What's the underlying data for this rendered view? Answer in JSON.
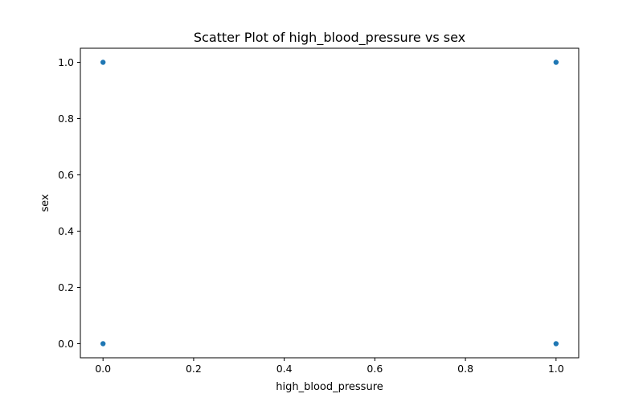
{
  "chart_data": {
    "type": "scatter",
    "title": "Scatter Plot of high_blood_pressure vs sex",
    "xlabel": "high_blood_pressure",
    "ylabel": "sex",
    "xlim": [
      -0.05,
      1.05
    ],
    "ylim": [
      -0.05,
      1.05
    ],
    "xticks": [
      0.0,
      0.2,
      0.4,
      0.6,
      0.8,
      1.0
    ],
    "yticks": [
      0.0,
      0.2,
      0.4,
      0.6,
      0.8,
      1.0
    ],
    "xtick_labels": [
      "0.0",
      "0.2",
      "0.4",
      "0.6",
      "0.8",
      "1.0"
    ],
    "ytick_labels": [
      "0.0",
      "0.2",
      "0.4",
      "0.6",
      "0.8",
      "1.0"
    ],
    "grid": false,
    "point_color": "#1f77b4",
    "points": [
      {
        "x": 0,
        "y": 1
      },
      {
        "x": 1,
        "y": 1
      },
      {
        "x": 0,
        "y": 0
      },
      {
        "x": 1,
        "y": 0
      }
    ]
  }
}
